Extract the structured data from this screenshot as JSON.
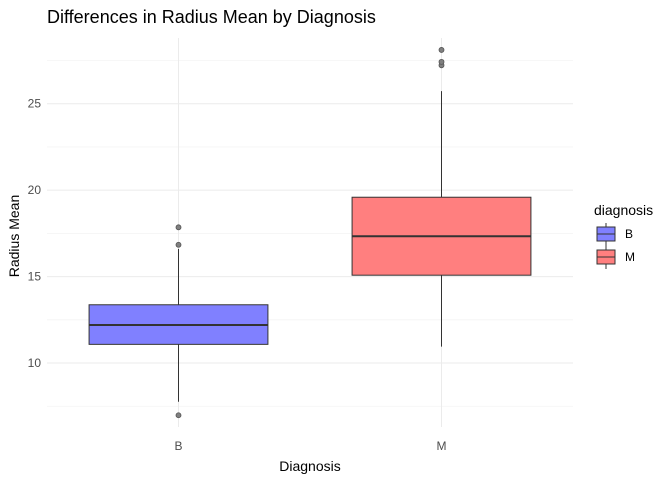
{
  "chart_data": {
    "type": "boxplot",
    "title": "Differences in Radius Mean by Diagnosis",
    "xlabel": "Diagnosis",
    "ylabel": "Radius Mean",
    "categories": [
      "B",
      "M"
    ],
    "ylim": [
      6.3,
      28.8
    ],
    "yticks": [
      10,
      15,
      20,
      25
    ],
    "grid": true,
    "boxes": [
      {
        "category": "B",
        "whisker_low": 7.76,
        "q1": 11.08,
        "median": 12.2,
        "q3": 13.37,
        "whisker_high": 16.6,
        "outliers": [
          6.98,
          16.84,
          17.85
        ],
        "fill": "#8080ff"
      },
      {
        "category": "M",
        "whisker_low": 10.95,
        "q1": 15.08,
        "median": 17.33,
        "q3": 19.59,
        "whisker_high": 25.73,
        "outliers": [
          27.22,
          27.42,
          28.11
        ],
        "fill": "#ff7f7f"
      }
    ],
    "legend": {
      "title": "diagnosis",
      "position": "right",
      "entries": [
        {
          "label": "B",
          "color": "#8080ff"
        },
        {
          "label": "M",
          "color": "#ff7f7f"
        }
      ]
    }
  }
}
